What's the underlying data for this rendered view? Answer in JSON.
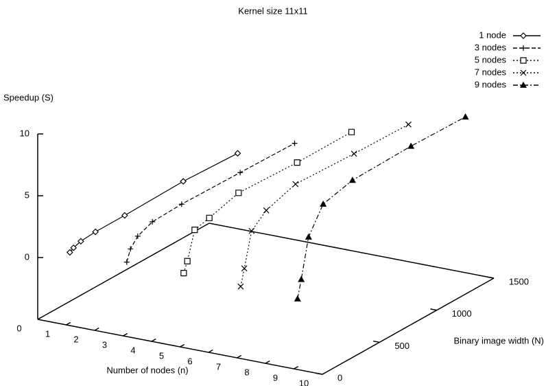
{
  "chart_data": {
    "type": "line3d",
    "title": "Kernel size 11x11",
    "xlabel": "Number of nodes (n)",
    "ylabel": "Binary image width (N)",
    "zlabel": "Speedup (S)",
    "xlim": [
      0,
      10
    ],
    "xticks": [
      0,
      1,
      2,
      3,
      4,
      5,
      6,
      7,
      8,
      9,
      10
    ],
    "ylim": [
      0,
      1500
    ],
    "yticks": [
      0,
      500,
      1000,
      1500
    ],
    "zlim": [
      -5,
      10
    ],
    "zticks": [
      0,
      5,
      10
    ],
    "legend": "top-right",
    "y": [
      32,
      64,
      128,
      256,
      512,
      1024,
      1500
    ],
    "series": [
      {
        "name": "1 node",
        "x": 1,
        "color": "#000000",
        "marker": "diamond",
        "dash": "solid",
        "values": [
          0.7,
          0.9,
          1.1,
          1.2,
          1.2,
          1.3,
          1.1
        ]
      },
      {
        "name": "3 nodes",
        "x": 3,
        "color": "#000000",
        "marker": "plus",
        "dash": "dashed",
        "values": [
          0.8,
          1.7,
          2.4,
          2.9,
          3.0,
          2.9,
          2.8
        ]
      },
      {
        "name": "5 nodes",
        "x": 5,
        "color": "#000000",
        "marker": "square",
        "dash": "dotted",
        "values": [
          0.8,
          1.6,
          3.8,
          4.1,
          4.8,
          4.6,
          4.6
        ]
      },
      {
        "name": "7 nodes",
        "x": 7,
        "color": "#000000",
        "marker": "cross",
        "dash": "dotted",
        "values": [
          0.6,
          1.9,
          4.6,
          5.6,
          6.4,
          6.2,
          6.1
        ]
      },
      {
        "name": "9 nodes",
        "x": 9,
        "color": "#000000",
        "marker": "triangle",
        "dash": "dashdot",
        "values": [
          0.5,
          1.9,
          5.0,
          7.0,
          7.6,
          7.7,
          7.6
        ]
      }
    ]
  }
}
